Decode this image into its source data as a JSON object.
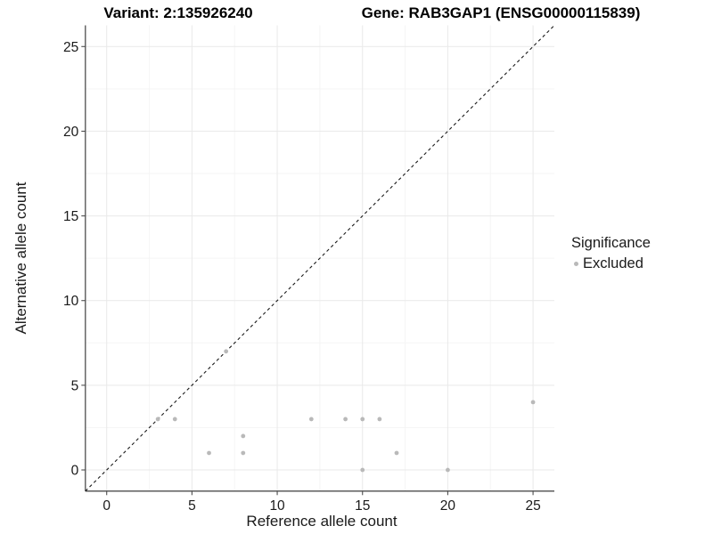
{
  "chart_data": {
    "type": "scatter",
    "titles": {
      "variant": "Variant: 2:135926240",
      "gene": "Gene: RAB3GAP1 (ENSG00000115839)"
    },
    "xlabel": "Reference allele count",
    "ylabel": "Alternative allele count",
    "xlim": [
      -1.25,
      26.25
    ],
    "ylim": [
      -1.25,
      26.25
    ],
    "xticks": [
      0,
      5,
      10,
      15,
      20,
      25
    ],
    "yticks": [
      0,
      5,
      10,
      15,
      20,
      25
    ],
    "xminor": [
      2.5,
      7.5,
      12.5,
      17.5,
      22.5
    ],
    "yminor": [
      2.5,
      7.5,
      12.5,
      17.5,
      22.5
    ],
    "grid": true,
    "legend": {
      "position": "right",
      "title": "Significance",
      "items": [
        {
          "label": "Excluded",
          "color": "#b9b9b9"
        }
      ]
    },
    "series": [
      {
        "name": "Excluded",
        "color": "#b9b9b9",
        "points": [
          [
            3,
            3
          ],
          [
            4,
            3
          ],
          [
            6,
            1
          ],
          [
            7,
            7
          ],
          [
            8,
            1
          ],
          [
            8,
            2
          ],
          [
            12,
            3
          ],
          [
            14,
            3
          ],
          [
            15,
            0
          ],
          [
            15,
            3
          ],
          [
            16,
            3
          ],
          [
            17,
            1
          ],
          [
            20,
            0
          ],
          [
            25,
            4
          ]
        ]
      }
    ],
    "reference_line": {
      "type": "identity",
      "slope": 1,
      "intercept": 0,
      "style": "dashed"
    }
  },
  "colors": {
    "point": "#b9b9b9",
    "grid_major": "#e9e9e9",
    "grid_minor": "#f5f5f5",
    "axis_line": "#4d4d4d",
    "tick_text": "#1a1a1a",
    "title_text": "#000000",
    "reference_line": "#1a1a1a",
    "background": "#ffffff"
  }
}
